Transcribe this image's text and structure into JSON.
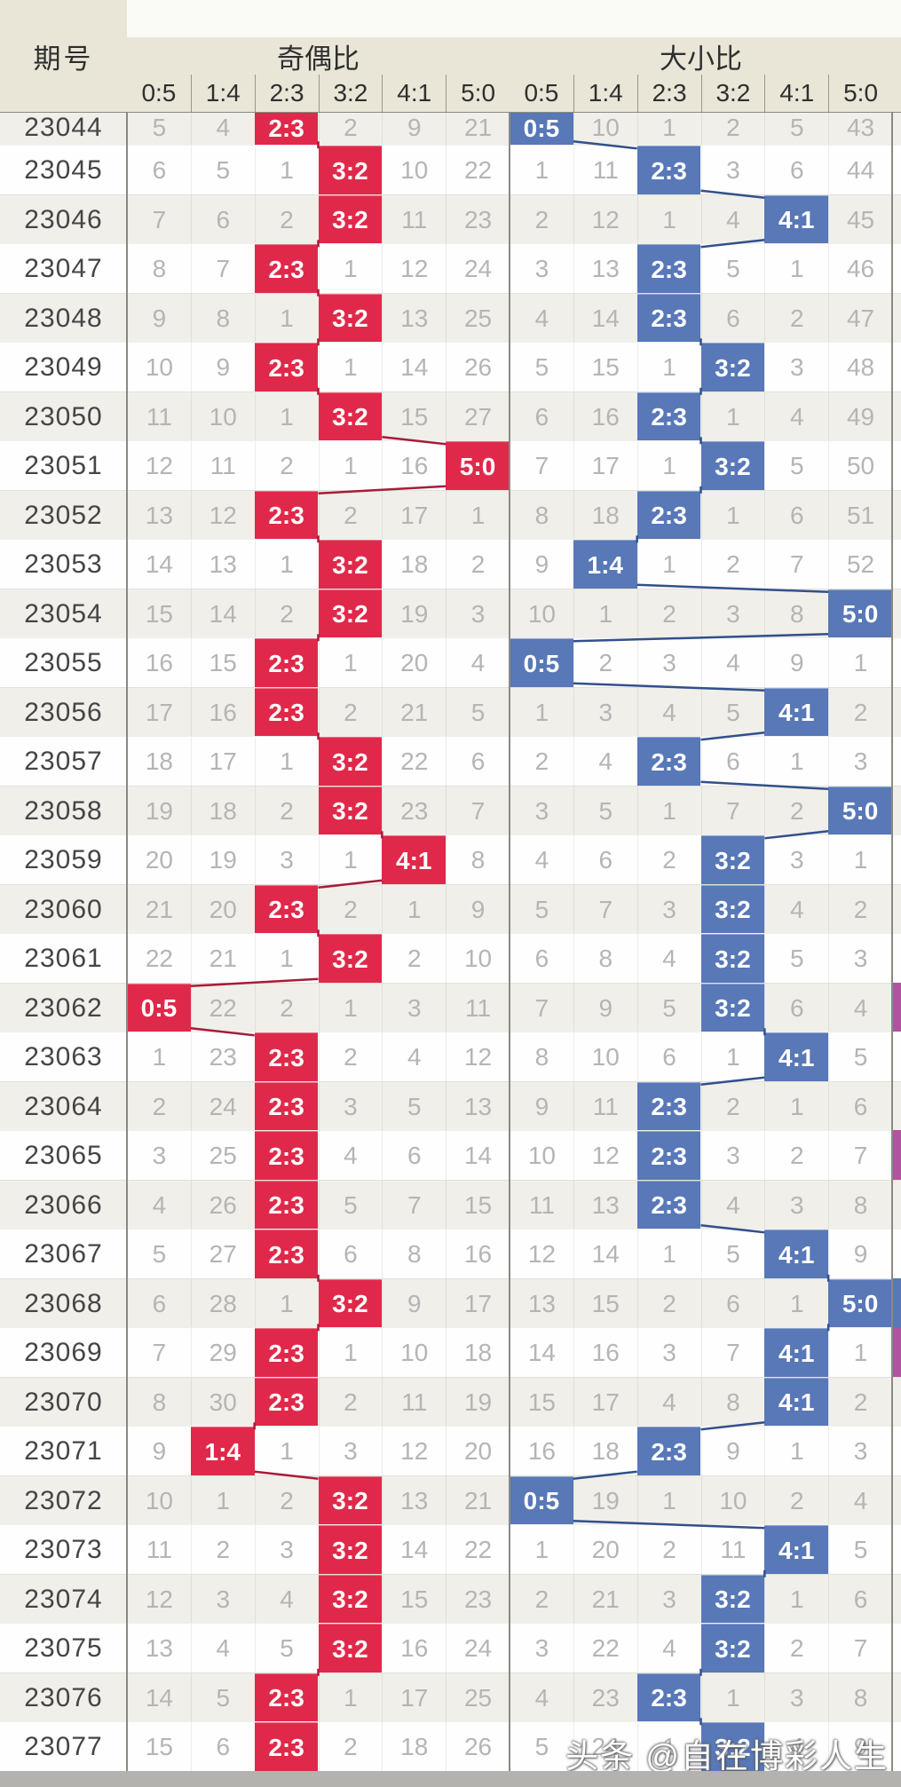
{
  "header": {
    "period_col_label": "期号",
    "groups": [
      {
        "label": "奇偶比",
        "sub": [
          "0:5",
          "1:4",
          "2:3",
          "3:2",
          "4:1",
          "5:0"
        ]
      },
      {
        "label": "大小比",
        "sub": [
          "0:5",
          "1:4",
          "2:3",
          "3:2",
          "4:1",
          "5:0"
        ]
      }
    ]
  },
  "rows": [
    {
      "period": "23044",
      "odd_even": [
        "5",
        "4",
        "2:3",
        "2",
        "9",
        "21"
      ],
      "big_small": [
        "0:5",
        "10",
        "1",
        "2",
        "5",
        "43"
      ]
    },
    {
      "period": "23045",
      "odd_even": [
        "6",
        "5",
        "1",
        "3:2",
        "10",
        "22"
      ],
      "big_small": [
        "1",
        "11",
        "2:3",
        "3",
        "6",
        "44"
      ]
    },
    {
      "period": "23046",
      "odd_even": [
        "7",
        "6",
        "2",
        "3:2",
        "11",
        "23"
      ],
      "big_small": [
        "2",
        "12",
        "1",
        "4",
        "4:1",
        "45"
      ]
    },
    {
      "period": "23047",
      "odd_even": [
        "8",
        "7",
        "2:3",
        "1",
        "12",
        "24"
      ],
      "big_small": [
        "3",
        "13",
        "2:3",
        "5",
        "1",
        "46"
      ]
    },
    {
      "period": "23048",
      "odd_even": [
        "9",
        "8",
        "1",
        "3:2",
        "13",
        "25"
      ],
      "big_small": [
        "4",
        "14",
        "2:3",
        "6",
        "2",
        "47"
      ]
    },
    {
      "period": "23049",
      "odd_even": [
        "10",
        "9",
        "2:3",
        "1",
        "14",
        "26"
      ],
      "big_small": [
        "5",
        "15",
        "1",
        "3:2",
        "3",
        "48"
      ]
    },
    {
      "period": "23050",
      "odd_even": [
        "11",
        "10",
        "1",
        "3:2",
        "15",
        "27"
      ],
      "big_small": [
        "6",
        "16",
        "2:3",
        "1",
        "4",
        "49"
      ]
    },
    {
      "period": "23051",
      "odd_even": [
        "12",
        "11",
        "2",
        "1",
        "16",
        "5:0"
      ],
      "big_small": [
        "7",
        "17",
        "1",
        "3:2",
        "5",
        "50"
      ]
    },
    {
      "period": "23052",
      "odd_even": [
        "13",
        "12",
        "2:3",
        "2",
        "17",
        "1"
      ],
      "big_small": [
        "8",
        "18",
        "2:3",
        "1",
        "6",
        "51"
      ]
    },
    {
      "period": "23053",
      "odd_even": [
        "14",
        "13",
        "1",
        "3:2",
        "18",
        "2"
      ],
      "big_small": [
        "9",
        "1:4",
        "1",
        "2",
        "7",
        "52"
      ]
    },
    {
      "period": "23054",
      "odd_even": [
        "15",
        "14",
        "2",
        "3:2",
        "19",
        "3"
      ],
      "big_small": [
        "10",
        "1",
        "2",
        "3",
        "8",
        "5:0"
      ]
    },
    {
      "period": "23055",
      "odd_even": [
        "16",
        "15",
        "2:3",
        "1",
        "20",
        "4"
      ],
      "big_small": [
        "0:5",
        "2",
        "3",
        "4",
        "9",
        "1"
      ]
    },
    {
      "period": "23056",
      "odd_even": [
        "17",
        "16",
        "2:3",
        "2",
        "21",
        "5"
      ],
      "big_small": [
        "1",
        "3",
        "4",
        "5",
        "4:1",
        "2"
      ]
    },
    {
      "period": "23057",
      "odd_even": [
        "18",
        "17",
        "1",
        "3:2",
        "22",
        "6"
      ],
      "big_small": [
        "2",
        "4",
        "2:3",
        "6",
        "1",
        "3"
      ]
    },
    {
      "period": "23058",
      "odd_even": [
        "19",
        "18",
        "2",
        "3:2",
        "23",
        "7"
      ],
      "big_small": [
        "3",
        "5",
        "1",
        "7",
        "2",
        "5:0"
      ]
    },
    {
      "period": "23059",
      "odd_even": [
        "20",
        "19",
        "3",
        "1",
        "4:1",
        "8"
      ],
      "big_small": [
        "4",
        "6",
        "2",
        "3:2",
        "3",
        "1"
      ]
    },
    {
      "period": "23060",
      "odd_even": [
        "21",
        "20",
        "2:3",
        "2",
        "1",
        "9"
      ],
      "big_small": [
        "5",
        "7",
        "3",
        "3:2",
        "4",
        "2"
      ]
    },
    {
      "period": "23061",
      "odd_even": [
        "22",
        "21",
        "1",
        "3:2",
        "2",
        "10"
      ],
      "big_small": [
        "6",
        "8",
        "4",
        "3:2",
        "5",
        "3"
      ]
    },
    {
      "period": "23062",
      "odd_even": [
        "0:5",
        "22",
        "2",
        "1",
        "3",
        "11"
      ],
      "big_small": [
        "7",
        "9",
        "5",
        "3:2",
        "6",
        "4"
      ]
    },
    {
      "period": "23063",
      "odd_even": [
        "1",
        "23",
        "2:3",
        "2",
        "4",
        "12"
      ],
      "big_small": [
        "8",
        "10",
        "6",
        "1",
        "4:1",
        "5"
      ]
    },
    {
      "period": "23064",
      "odd_even": [
        "2",
        "24",
        "2:3",
        "3",
        "5",
        "13"
      ],
      "big_small": [
        "9",
        "11",
        "2:3",
        "2",
        "1",
        "6"
      ]
    },
    {
      "period": "23065",
      "odd_even": [
        "3",
        "25",
        "2:3",
        "4",
        "6",
        "14"
      ],
      "big_small": [
        "10",
        "12",
        "2:3",
        "3",
        "2",
        "7"
      ]
    },
    {
      "period": "23066",
      "odd_even": [
        "4",
        "26",
        "2:3",
        "5",
        "7",
        "15"
      ],
      "big_small": [
        "11",
        "13",
        "2:3",
        "4",
        "3",
        "8"
      ]
    },
    {
      "period": "23067",
      "odd_even": [
        "5",
        "27",
        "2:3",
        "6",
        "8",
        "16"
      ],
      "big_small": [
        "12",
        "14",
        "1",
        "5",
        "4:1",
        "9"
      ]
    },
    {
      "period": "23068",
      "odd_even": [
        "6",
        "28",
        "1",
        "3:2",
        "9",
        "17"
      ],
      "big_small": [
        "13",
        "15",
        "2",
        "6",
        "1",
        "5:0"
      ]
    },
    {
      "period": "23069",
      "odd_even": [
        "7",
        "29",
        "2:3",
        "1",
        "10",
        "18"
      ],
      "big_small": [
        "14",
        "16",
        "3",
        "7",
        "4:1",
        "1"
      ]
    },
    {
      "period": "23070",
      "odd_even": [
        "8",
        "30",
        "2:3",
        "2",
        "11",
        "19"
      ],
      "big_small": [
        "15",
        "17",
        "4",
        "8",
        "4:1",
        "2"
      ]
    },
    {
      "period": "23071",
      "odd_even": [
        "9",
        "1:4",
        "1",
        "3",
        "12",
        "20"
      ],
      "big_small": [
        "16",
        "18",
        "2:3",
        "9",
        "1",
        "3"
      ]
    },
    {
      "period": "23072",
      "odd_even": [
        "10",
        "1",
        "2",
        "3:2",
        "13",
        "21"
      ],
      "big_small": [
        "0:5",
        "19",
        "1",
        "10",
        "2",
        "4"
      ]
    },
    {
      "period": "23073",
      "odd_even": [
        "11",
        "2",
        "3",
        "3:2",
        "14",
        "22"
      ],
      "big_small": [
        "1",
        "20",
        "2",
        "11",
        "4:1",
        "5"
      ]
    },
    {
      "period": "23074",
      "odd_even": [
        "12",
        "3",
        "4",
        "3:2",
        "15",
        "23"
      ],
      "big_small": [
        "2",
        "21",
        "3",
        "3:2",
        "1",
        "6"
      ]
    },
    {
      "period": "23075",
      "odd_even": [
        "13",
        "4",
        "5",
        "3:2",
        "16",
        "24"
      ],
      "big_small": [
        "3",
        "22",
        "4",
        "3:2",
        "2",
        "7"
      ]
    },
    {
      "period": "23076",
      "odd_even": [
        "14",
        "5",
        "2:3",
        "1",
        "17",
        "25"
      ],
      "big_small": [
        "4",
        "23",
        "2:3",
        "1",
        "3",
        "8"
      ]
    },
    {
      "period": "23077",
      "odd_even": [
        "15",
        "6",
        "2:3",
        "2",
        "18",
        "26"
      ],
      "big_small": [
        "5",
        "24",
        "1",
        "3:2",
        "4",
        "9"
      ]
    }
  ],
  "edge_strip_marks": [
    {
      "period": "23062",
      "color_key": "magenta"
    },
    {
      "period": "23065",
      "color_key": "magenta"
    },
    {
      "period": "23068",
      "color_key": "blue"
    },
    {
      "period": "23069",
      "color_key": "magenta"
    }
  ],
  "watermark": "头条 @自在博彩人生",
  "colors": {
    "red_highlight": "#e0294a",
    "red_line": "#a81b38",
    "blue_highlight": "#5878b7",
    "blue_line": "#32508a",
    "magenta": "#b2539f",
    "header_beige": "#e9e6d7",
    "top_strip": "#fafaf7",
    "stripe_row": "#f0efea",
    "white_row": "#fefefe",
    "grid_dark": "#8a8a82",
    "value_gray": "#b5b5b3",
    "period_text": "#454545",
    "header_text": "#2f2f2f",
    "footer_band": "#b4b2ae"
  }
}
